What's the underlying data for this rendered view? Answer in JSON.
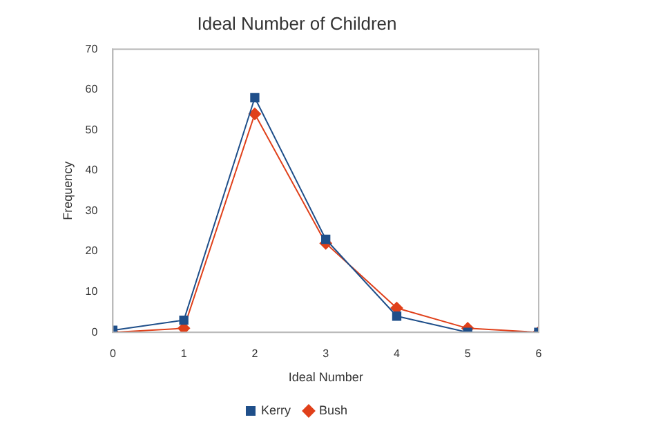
{
  "chart_data": {
    "type": "line",
    "title": "Ideal Number of Children",
    "xlabel": "Ideal Number",
    "ylabel": "Frequency",
    "x": [
      0,
      1,
      2,
      3,
      4,
      5,
      6
    ],
    "xlim": [
      0,
      6
    ],
    "xticks": [
      0,
      1,
      2,
      3,
      4,
      5,
      6
    ],
    "ylim": [
      0,
      70
    ],
    "yticks": [
      0,
      10,
      20,
      30,
      40,
      50,
      60,
      70
    ],
    "series": [
      {
        "name": "Kerry",
        "color": "#1f4f8a",
        "marker": "square",
        "values": [
          0.5,
          3,
          58,
          23,
          4,
          0,
          0
        ]
      },
      {
        "name": "Bush",
        "color": "#e0401a",
        "marker": "diamond",
        "values": [
          0,
          1,
          54,
          22,
          6,
          1,
          0
        ]
      }
    ],
    "legend": "bottom",
    "grid": false,
    "line_style": "solid"
  }
}
